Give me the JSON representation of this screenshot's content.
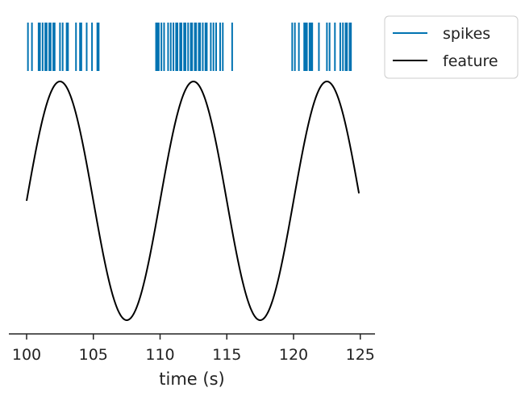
{
  "chart_data": {
    "type": "line",
    "xlabel": "time (s)",
    "ylabel": "",
    "title": "",
    "xlim": [
      99.0,
      126.0
    ],
    "x_ticks": [
      100,
      105,
      110,
      115,
      120,
      125
    ],
    "x_tick_labels": [
      "100",
      "105",
      "110",
      "115",
      "120",
      "125"
    ],
    "legend_position": "outside upper-right",
    "grid": false,
    "series": [
      {
        "name": "feature",
        "type": "line",
        "color": "#000000",
        "function": "sin(2*pi*t/10)",
        "x_range": [
          100.0,
          124.9
        ],
        "amplitude": 1.0,
        "period": 10
      },
      {
        "name": "spikes",
        "type": "eventplot",
        "color": "#0173b2",
        "times": [
          100.1,
          100.4,
          100.9,
          101.0,
          101.2,
          101.4,
          101.5,
          101.7,
          101.8,
          102.0,
          102.1,
          102.5,
          102.7,
          103.0,
          103.1,
          103.7,
          104.0,
          104.1,
          104.5,
          104.9,
          105.3,
          105.4,
          109.7,
          109.8,
          109.9,
          110.1,
          110.3,
          110.6,
          110.8,
          111.0,
          111.2,
          111.3,
          111.5,
          111.6,
          111.8,
          111.9,
          112.1,
          112.3,
          112.4,
          112.6,
          112.7,
          112.9,
          113.0,
          113.2,
          113.4,
          113.5,
          113.8,
          114.0,
          114.2,
          114.5,
          114.7,
          115.4,
          119.9,
          120.1,
          120.4,
          120.8,
          120.9,
          121.0,
          121.2,
          121.3,
          121.4,
          121.9,
          122.5,
          122.7,
          123.1,
          123.5,
          123.7,
          123.9,
          124.0,
          124.2,
          124.3
        ]
      }
    ],
    "legend": [
      {
        "label": "spikes",
        "color": "#0173b2"
      },
      {
        "label": "feature",
        "color": "#000000"
      }
    ]
  }
}
